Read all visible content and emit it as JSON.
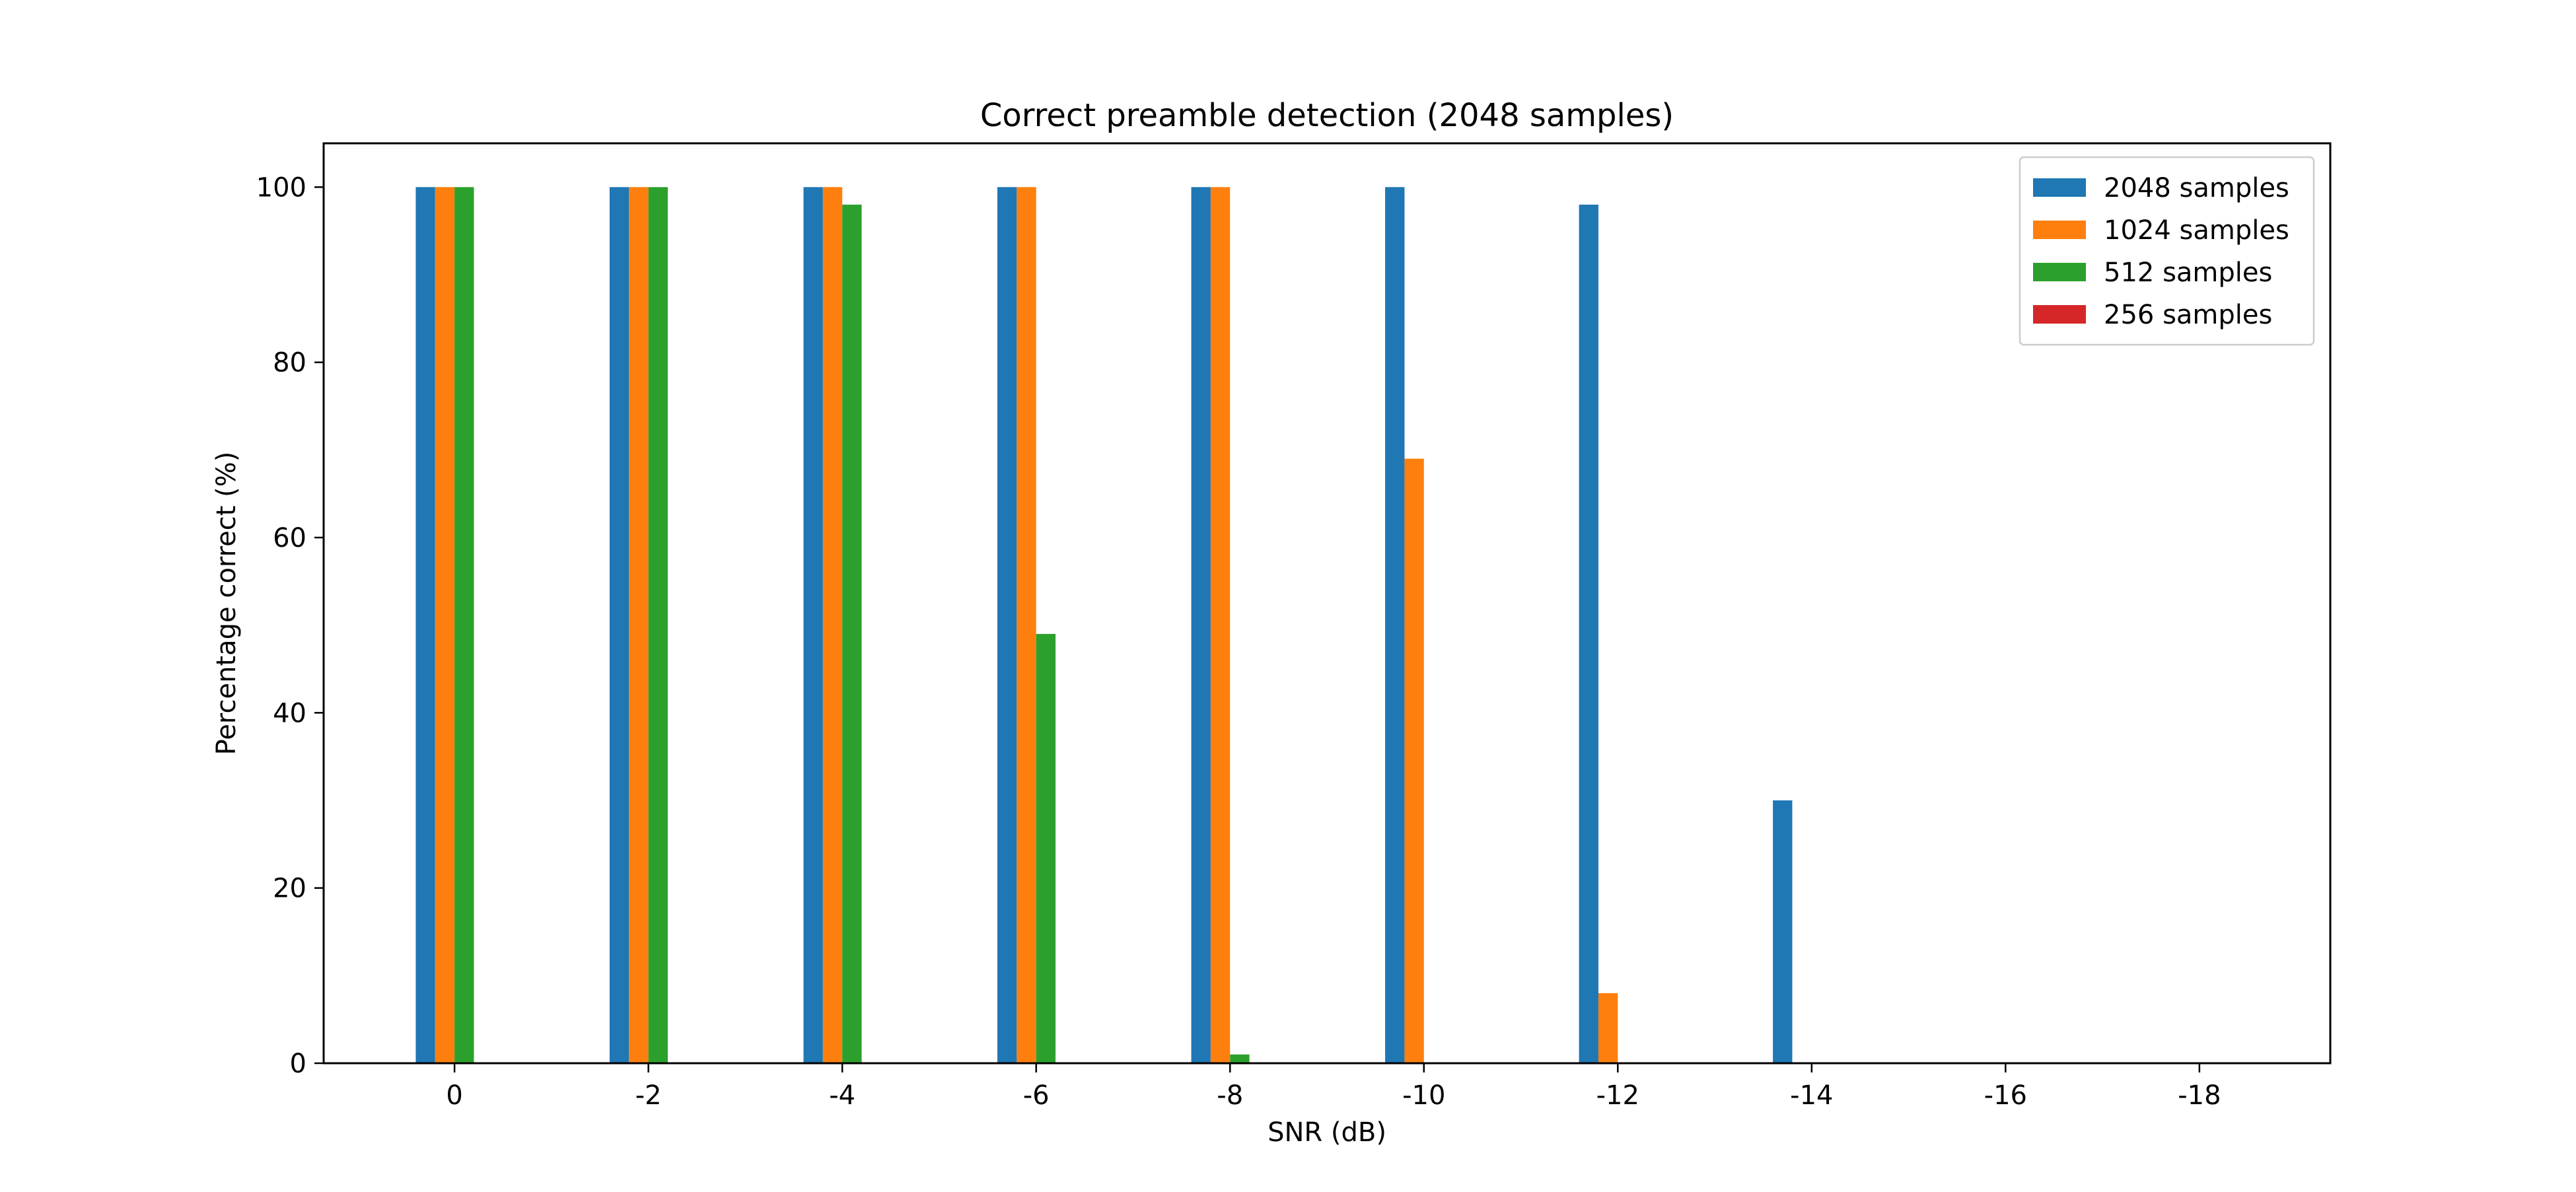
{
  "chart_data": {
    "type": "bar",
    "title": "Correct preamble detection (2048 samples)",
    "xlabel": "SNR (dB)",
    "ylabel": "Percentage correct (%)",
    "categories": [
      "0",
      "-2",
      "-4",
      "-6",
      "-8",
      "-10",
      "-12",
      "-14",
      "-16",
      "-18"
    ],
    "ylim": [
      0,
      105
    ],
    "yticks": [
      "0",
      "20",
      "40",
      "60",
      "80",
      "100"
    ],
    "grid": false,
    "legend_position": "top-right",
    "series": [
      {
        "name": "2048 samples",
        "color": "#1f77b4",
        "values": [
          100,
          100,
          100,
          100,
          100,
          100,
          98,
          30,
          0,
          0
        ]
      },
      {
        "name": "1024 samples",
        "color": "#ff7f0e",
        "values": [
          100,
          100,
          100,
          100,
          100,
          69,
          8,
          0,
          0,
          0
        ]
      },
      {
        "name": "512 samples",
        "color": "#2ca02c",
        "values": [
          100,
          100,
          98,
          49,
          1,
          0,
          0,
          0,
          0,
          0
        ]
      },
      {
        "name": "256 samples",
        "color": "#d62728",
        "values": [
          0,
          0,
          0,
          0,
          0,
          0,
          0,
          0,
          0,
          0
        ]
      }
    ]
  }
}
